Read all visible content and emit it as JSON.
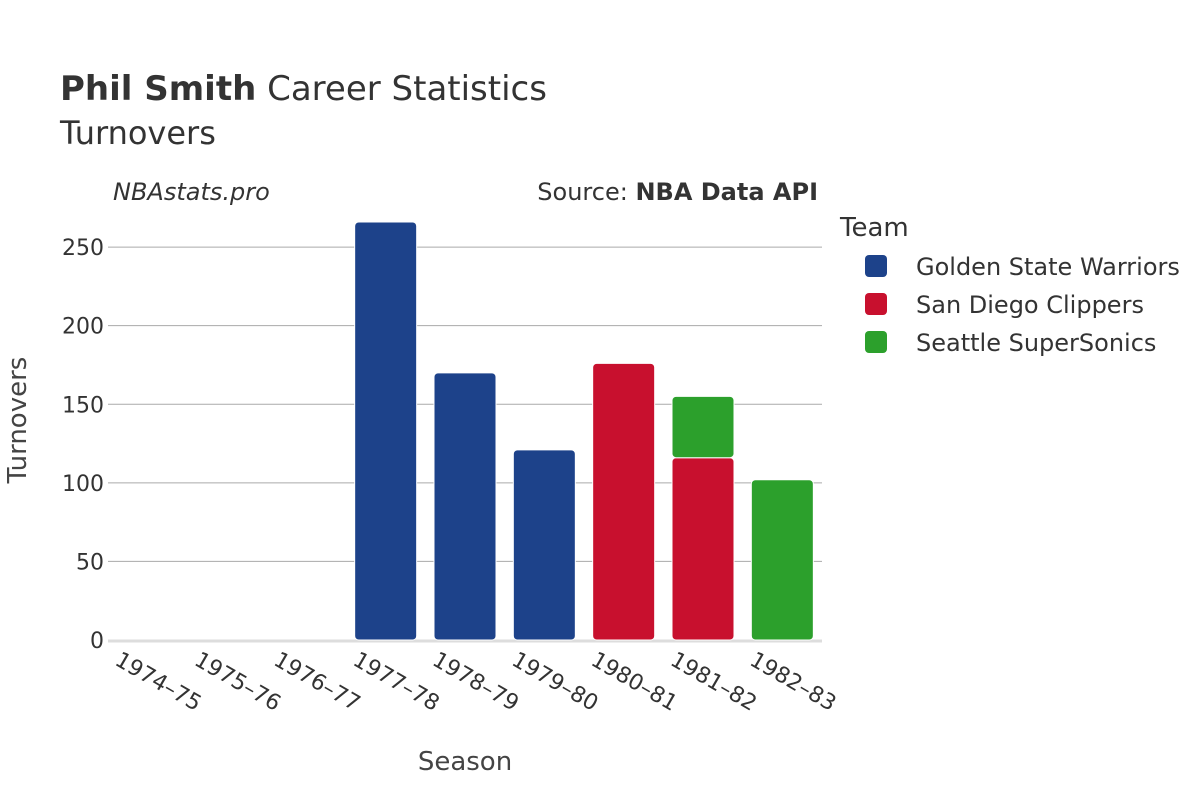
{
  "header": {
    "title_bold": "Phil Smith",
    "title_rest": " Career Statistics",
    "subtitle": "Turnovers",
    "watermark": "NBAstats.pro",
    "source_prefix": "Source: ",
    "source_name": "NBA Data API"
  },
  "legend": {
    "title": "Team",
    "items": [
      {
        "label": "Golden State Warriors",
        "color": "#1d428a"
      },
      {
        "label": "San Diego Clippers",
        "color": "#c8102e"
      },
      {
        "label": "Seattle SuperSonics",
        "color": "#2ca02c"
      }
    ]
  },
  "chart_data": {
    "type": "bar",
    "stacked": true,
    "title": "Phil Smith Career Statistics",
    "subtitle": "Turnovers",
    "xlabel": "Season",
    "ylabel": "Turnovers",
    "categories": [
      "1974–75",
      "1975–76",
      "1976–77",
      "1977–78",
      "1978–79",
      "1979–80",
      "1980–81",
      "1981–82",
      "1982–83"
    ],
    "series": [
      {
        "name": "Golden State Warriors",
        "color": "#1d428a",
        "values": [
          0,
          0,
          0,
          266,
          170,
          121,
          0,
          0,
          0
        ]
      },
      {
        "name": "San Diego Clippers",
        "color": "#c8102e",
        "values": [
          0,
          0,
          0,
          0,
          0,
          0,
          176,
          116,
          0
        ]
      },
      {
        "name": "Seattle SuperSonics",
        "color": "#2ca02c",
        "values": [
          0,
          0,
          0,
          0,
          0,
          0,
          0,
          39,
          102
        ]
      }
    ],
    "ylim": [
      0,
      275
    ],
    "yticks": [
      0,
      50,
      100,
      150,
      200,
      250
    ],
    "grid": true,
    "legend_position": "right"
  }
}
